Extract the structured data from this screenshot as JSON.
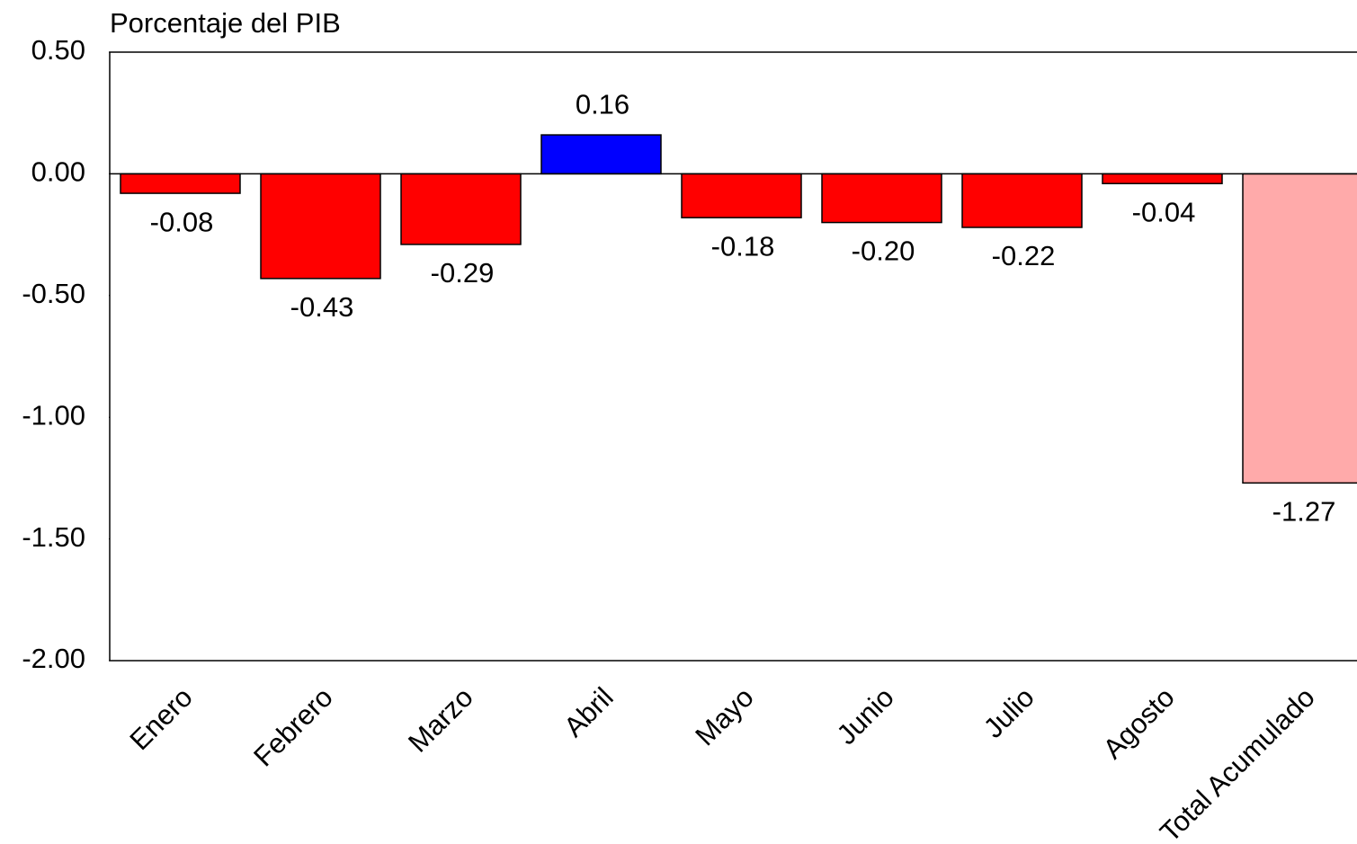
{
  "chart_data": {
    "type": "bar",
    "y_label": "Porcentaje del PIB",
    "categories": [
      "Enero",
      "Febrero",
      "Marzo",
      "Abril",
      "Mayo",
      "Junio",
      "Julio",
      "Agosto",
      "Total Acumulado"
    ],
    "values": [
      -0.08,
      -0.43,
      -0.29,
      0.16,
      -0.18,
      -0.2,
      -0.22,
      -0.04,
      -1.27
    ],
    "value_labels": [
      "-0.08",
      "-0.43",
      "-0.29",
      "0.16",
      "-0.18",
      "-0.20",
      "-0.22",
      "-0.04",
      "-1.27"
    ],
    "colors": [
      "#ff0000",
      "#ff0000",
      "#ff0000",
      "#0000ff",
      "#ff0000",
      "#ff0000",
      "#ff0000",
      "#ff0000",
      "#ffaaaa"
    ],
    "ylim": [
      -2,
      0.5
    ],
    "yticks": [
      {
        "value": 0.5,
        "label": "0.50"
      },
      {
        "value": 0,
        "label": "0.00"
      },
      {
        "value": -0.5,
        "label": "-0.50"
      },
      {
        "value": -1,
        "label": "-1.00"
      },
      {
        "value": -1.5,
        "label": "-1.50"
      },
      {
        "value": -2,
        "label": "-2.00"
      }
    ]
  }
}
